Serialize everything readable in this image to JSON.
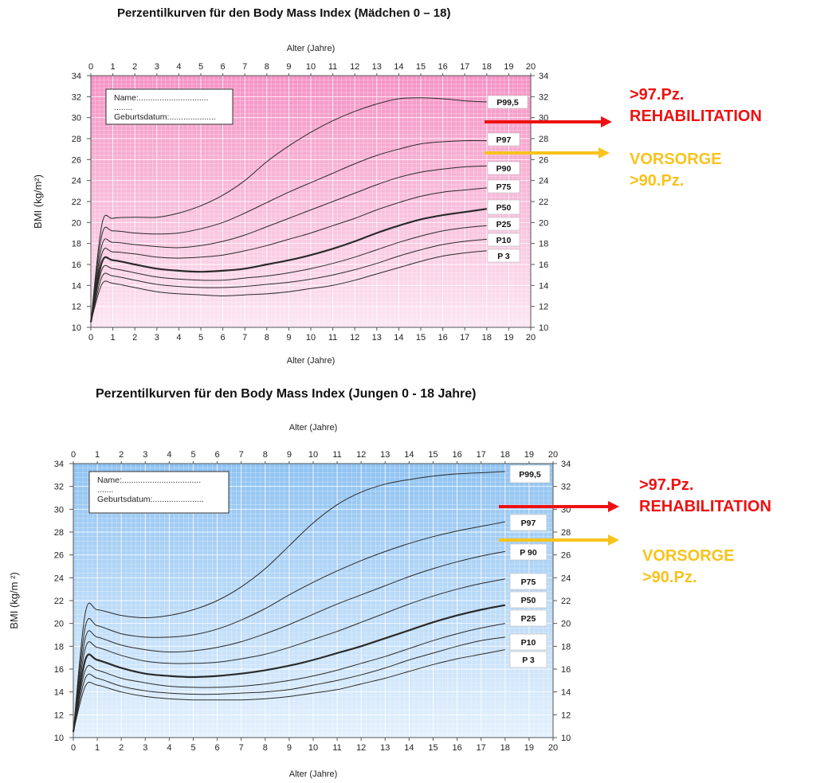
{
  "colors": {
    "rehab": "#ee1111",
    "vorsorge": "#f7c31c",
    "girls_top": "#f592c4",
    "girls_bottom": "#fce6f1",
    "boys_top": "#8ec2f1",
    "boys_bottom": "#e4f1fd"
  },
  "annotations": {
    "rehab_line1": ">97.Pz.",
    "rehab_line2": "REHABILITATION",
    "vorsorge_line1": "VORSORGE",
    "vorsorge_line2": ">90.Pz."
  },
  "chart_data": [
    {
      "type": "line",
      "title": "Perzentilkurven für den Body Mass Index (Mädchen 0 – 18)",
      "xlabel": "Alter (Jahre)",
      "ylabel": "BMI (kg/m²)",
      "xlim": [
        0,
        20
      ],
      "ylim": [
        10,
        34
      ],
      "grid": true,
      "x_ticks": [
        "0",
        "1",
        "2",
        "3",
        "4",
        "5",
        "6",
        "7",
        "8",
        "9",
        "10",
        "11",
        "12",
        "13",
        "14",
        "15",
        "16",
        "17",
        "18",
        "19",
        "20"
      ],
      "y_ticks": [
        "10",
        "12",
        "14",
        "16",
        "18",
        "20",
        "22",
        "24",
        "26",
        "28",
        "30",
        "32",
        "34"
      ],
      "form_fields": [
        "Name:..............................",
        "........",
        "Geburtsdatum:...................."
      ],
      "series": [
        {
          "name": "P99,5",
          "label": "P99,5",
          "x": [
            0,
            0.5,
            1,
            2,
            3,
            4,
            5,
            6,
            7,
            8,
            9,
            10,
            11,
            12,
            13,
            14,
            15,
            16,
            17,
            18
          ],
          "values": [
            10.5,
            19.8,
            20.4,
            20.5,
            20.5,
            20.9,
            21.6,
            22.6,
            24,
            25.8,
            27.3,
            28.6,
            29.7,
            30.6,
            31.3,
            31.8,
            31.9,
            31.8,
            31.6,
            31.5
          ]
        },
        {
          "name": "P97",
          "label": "P97",
          "x": [
            0,
            0.5,
            1,
            2,
            3,
            4,
            5,
            6,
            7,
            8,
            9,
            10,
            11,
            12,
            13,
            14,
            15,
            16,
            17,
            18
          ],
          "values": [
            10.5,
            18.8,
            19.2,
            19,
            18.9,
            19,
            19.4,
            20,
            20.9,
            21.9,
            22.9,
            23.8,
            24.7,
            25.6,
            26.4,
            27,
            27.5,
            27.7,
            27.8,
            27.8
          ]
        },
        {
          "name": "P90",
          "label": "P90",
          "x": [
            0,
            0.5,
            1,
            2,
            3,
            4,
            5,
            6,
            7,
            8,
            9,
            10,
            11,
            12,
            13,
            14,
            15,
            16,
            17,
            18
          ],
          "values": [
            10.5,
            17.8,
            18.1,
            17.9,
            17.7,
            17.6,
            17.8,
            18.2,
            18.8,
            19.6,
            20.4,
            21.2,
            22,
            22.8,
            23.6,
            24.3,
            24.8,
            25.1,
            25.3,
            25.4
          ]
        },
        {
          "name": "P75",
          "label": "P75",
          "x": [
            0,
            0.5,
            1,
            2,
            3,
            4,
            5,
            6,
            7,
            8,
            9,
            10,
            11,
            12,
            13,
            14,
            15,
            16,
            17,
            18
          ],
          "values": [
            10.5,
            17,
            17.2,
            17,
            16.7,
            16.6,
            16.7,
            16.9,
            17.3,
            17.8,
            18.4,
            19,
            19.7,
            20.4,
            21.2,
            21.9,
            22.5,
            22.9,
            23.1,
            23.3
          ]
        },
        {
          "name": "P50",
          "label": "P50",
          "x": [
            0,
            0.5,
            1,
            2,
            3,
            4,
            5,
            6,
            7,
            8,
            9,
            10,
            11,
            12,
            13,
            14,
            15,
            16,
            17,
            18
          ],
          "values": [
            10.5,
            16.2,
            16.4,
            16,
            15.6,
            15.4,
            15.3,
            15.4,
            15.6,
            16,
            16.4,
            16.9,
            17.5,
            18.2,
            19,
            19.7,
            20.3,
            20.7,
            21,
            21.3
          ]
        },
        {
          "name": "P25",
          "label": "P25",
          "x": [
            0,
            0.5,
            1,
            2,
            3,
            4,
            5,
            6,
            7,
            8,
            9,
            10,
            11,
            12,
            13,
            14,
            15,
            16,
            17,
            18
          ],
          "values": [
            10.5,
            15.5,
            15.6,
            15.2,
            14.8,
            14.6,
            14.5,
            14.5,
            14.7,
            14.9,
            15.2,
            15.6,
            16.1,
            16.7,
            17.4,
            18.1,
            18.7,
            19.2,
            19.5,
            19.7
          ]
        },
        {
          "name": "P10",
          "label": "P10",
          "x": [
            0,
            0.5,
            1,
            2,
            3,
            4,
            5,
            6,
            7,
            8,
            9,
            10,
            11,
            12,
            13,
            14,
            15,
            16,
            17,
            18
          ],
          "values": [
            10.5,
            14.8,
            14.9,
            14.5,
            14.1,
            13.9,
            13.8,
            13.8,
            13.9,
            14.1,
            14.3,
            14.6,
            15,
            15.5,
            16.1,
            16.8,
            17.4,
            17.9,
            18.2,
            18.4
          ]
        },
        {
          "name": "P3",
          "label": "P 3",
          "x": [
            0,
            0.5,
            1,
            2,
            3,
            4,
            5,
            6,
            7,
            8,
            9,
            10,
            11,
            12,
            13,
            14,
            15,
            16,
            17,
            18
          ],
          "values": [
            10.5,
            14.1,
            14.2,
            13.8,
            13.4,
            13.2,
            13.1,
            13,
            13.1,
            13.2,
            13.4,
            13.7,
            14,
            14.5,
            15.1,
            15.7,
            16.3,
            16.8,
            17.1,
            17.3
          ]
        }
      ]
    },
    {
      "type": "line",
      "title": "Perzentilkurven für den Body Mass Index (Jungen 0 - 18 Jahre)",
      "xlabel": "Alter (Jahre)",
      "ylabel": "BMI (kg/m ²)",
      "xlim": [
        0,
        20
      ],
      "ylim": [
        10,
        34
      ],
      "grid": true,
      "x_ticks": [
        "0",
        "1",
        "2",
        "3",
        "4",
        "5",
        "6",
        "7",
        "8",
        "9",
        "10",
        "11",
        "12",
        "13",
        "14",
        "15",
        "16",
        "17",
        "18",
        "19",
        "20"
      ],
      "y_ticks": [
        "10",
        "12",
        "14",
        "16",
        "18",
        "20",
        "22",
        "24",
        "26",
        "28",
        "30",
        "32",
        "34"
      ],
      "form_fields": [
        "Name:..................................",
        ".......",
        "Geburtsdatum:......................"
      ],
      "series": [
        {
          "name": "P99,5",
          "label": "P99,5",
          "x": [
            0,
            0.5,
            1,
            2,
            3,
            4,
            5,
            6,
            7,
            8,
            9,
            10,
            11,
            12,
            13,
            14,
            15,
            16,
            17,
            18
          ],
          "values": [
            10.5,
            20.9,
            21.2,
            20.7,
            20.5,
            20.7,
            21.2,
            22,
            23.2,
            24.8,
            26.8,
            28.8,
            30.4,
            31.5,
            32.2,
            32.6,
            32.9,
            33.1,
            33.2,
            33.3
          ]
        },
        {
          "name": "P97",
          "label": "P97",
          "x": [
            0,
            0.5,
            1,
            2,
            3,
            4,
            5,
            6,
            7,
            8,
            9,
            10,
            11,
            12,
            13,
            14,
            15,
            16,
            17,
            18
          ],
          "values": [
            10.5,
            19.7,
            19.8,
            19.1,
            18.8,
            18.8,
            19,
            19.5,
            20.3,
            21.3,
            22.5,
            23.6,
            24.6,
            25.5,
            26.3,
            27,
            27.6,
            28.1,
            28.5,
            28.9
          ]
        },
        {
          "name": "P90",
          "label": "P 90",
          "x": [
            0,
            0.5,
            1,
            2,
            3,
            4,
            5,
            6,
            7,
            8,
            9,
            10,
            11,
            12,
            13,
            14,
            15,
            16,
            17,
            18
          ],
          "values": [
            10.5,
            18.7,
            18.8,
            18.1,
            17.7,
            17.5,
            17.6,
            17.9,
            18.4,
            19.1,
            19.9,
            20.8,
            21.7,
            22.5,
            23.3,
            24.1,
            24.8,
            25.4,
            25.9,
            26.3
          ]
        },
        {
          "name": "P75",
          "label": "P75",
          "x": [
            0,
            0.5,
            1,
            2,
            3,
            4,
            5,
            6,
            7,
            8,
            9,
            10,
            11,
            12,
            13,
            14,
            15,
            16,
            17,
            18
          ],
          "values": [
            10.5,
            17.8,
            17.9,
            17.2,
            16.7,
            16.5,
            16.5,
            16.6,
            16.9,
            17.3,
            17.9,
            18.6,
            19.3,
            20.1,
            20.9,
            21.7,
            22.4,
            23,
            23.5,
            23.9
          ]
        },
        {
          "name": "P50",
          "label": "P50",
          "x": [
            0,
            0.5,
            1,
            2,
            3,
            4,
            5,
            6,
            7,
            8,
            9,
            10,
            11,
            12,
            13,
            14,
            15,
            16,
            17,
            18
          ],
          "values": [
            10.5,
            16.8,
            16.8,
            16.1,
            15.6,
            15.4,
            15.3,
            15.4,
            15.6,
            15.9,
            16.3,
            16.8,
            17.4,
            18,
            18.7,
            19.4,
            20.1,
            20.7,
            21.2,
            21.6
          ]
        },
        {
          "name": "P25",
          "label": "P25",
          "x": [
            0,
            0.5,
            1,
            2,
            3,
            4,
            5,
            6,
            7,
            8,
            9,
            10,
            11,
            12,
            13,
            14,
            15,
            16,
            17,
            18
          ],
          "values": [
            10.5,
            15.9,
            15.9,
            15.2,
            14.8,
            14.5,
            14.4,
            14.4,
            14.5,
            14.7,
            15,
            15.4,
            15.9,
            16.5,
            17.1,
            17.8,
            18.5,
            19.1,
            19.6,
            20
          ]
        },
        {
          "name": "P10",
          "label": "P10",
          "x": [
            0,
            0.5,
            1,
            2,
            3,
            4,
            5,
            6,
            7,
            8,
            9,
            10,
            11,
            12,
            13,
            14,
            15,
            16,
            17,
            18
          ],
          "values": [
            10.5,
            15.2,
            15.2,
            14.5,
            14.1,
            13.9,
            13.8,
            13.8,
            13.9,
            14,
            14.2,
            14.6,
            15,
            15.5,
            16.1,
            16.8,
            17.4,
            18,
            18.5,
            18.8
          ]
        },
        {
          "name": "P3",
          "label": "P 3",
          "x": [
            0,
            0.5,
            1,
            2,
            3,
            4,
            5,
            6,
            7,
            8,
            9,
            10,
            11,
            12,
            13,
            14,
            15,
            16,
            17,
            18
          ],
          "values": [
            10.5,
            14.5,
            14.6,
            14,
            13.6,
            13.4,
            13.3,
            13.3,
            13.3,
            13.4,
            13.6,
            13.9,
            14.2,
            14.7,
            15.2,
            15.8,
            16.4,
            16.9,
            17.3,
            17.7
          ]
        }
      ]
    }
  ]
}
